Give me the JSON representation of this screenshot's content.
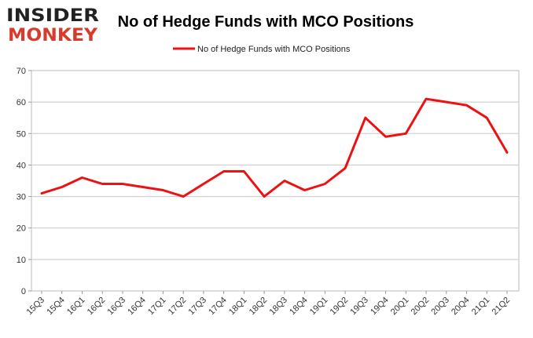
{
  "logo": {
    "line1": "INSIDER",
    "line2": "MONKEY",
    "colors": {
      "dark": "#222222",
      "accent": "#d93a2b"
    }
  },
  "chart_data": {
    "type": "line",
    "title": "No of Hedge Funds with MCO Positions",
    "xlabel": "",
    "ylabel": "",
    "legend": {
      "placement": "top-center",
      "entries": [
        "No of Hedge Funds with MCO Positions"
      ]
    },
    "grid": true,
    "ylim": [
      0,
      70
    ],
    "yticks": [
      0,
      10,
      20,
      30,
      40,
      50,
      60,
      70
    ],
    "categories": [
      "15Q3",
      "15Q4",
      "16Q1",
      "16Q2",
      "16Q3",
      "16Q4",
      "17Q1",
      "17Q2",
      "17Q3",
      "17Q4",
      "18Q1",
      "18Q2",
      "18Q3",
      "18Q4",
      "19Q1",
      "19Q2",
      "19Q3",
      "19Q4",
      "20Q1",
      "20Q2",
      "20Q3",
      "20Q4",
      "21Q1",
      "21Q2"
    ],
    "series": [
      {
        "name": "No of Hedge Funds with MCO Positions",
        "color": "#ee1111",
        "values": [
          31,
          33,
          36,
          34,
          34,
          33,
          32,
          30,
          34,
          38,
          38,
          30,
          35,
          32,
          34,
          39,
          55,
          49,
          50,
          61,
          60,
          59,
          55,
          44
        ]
      }
    ]
  }
}
